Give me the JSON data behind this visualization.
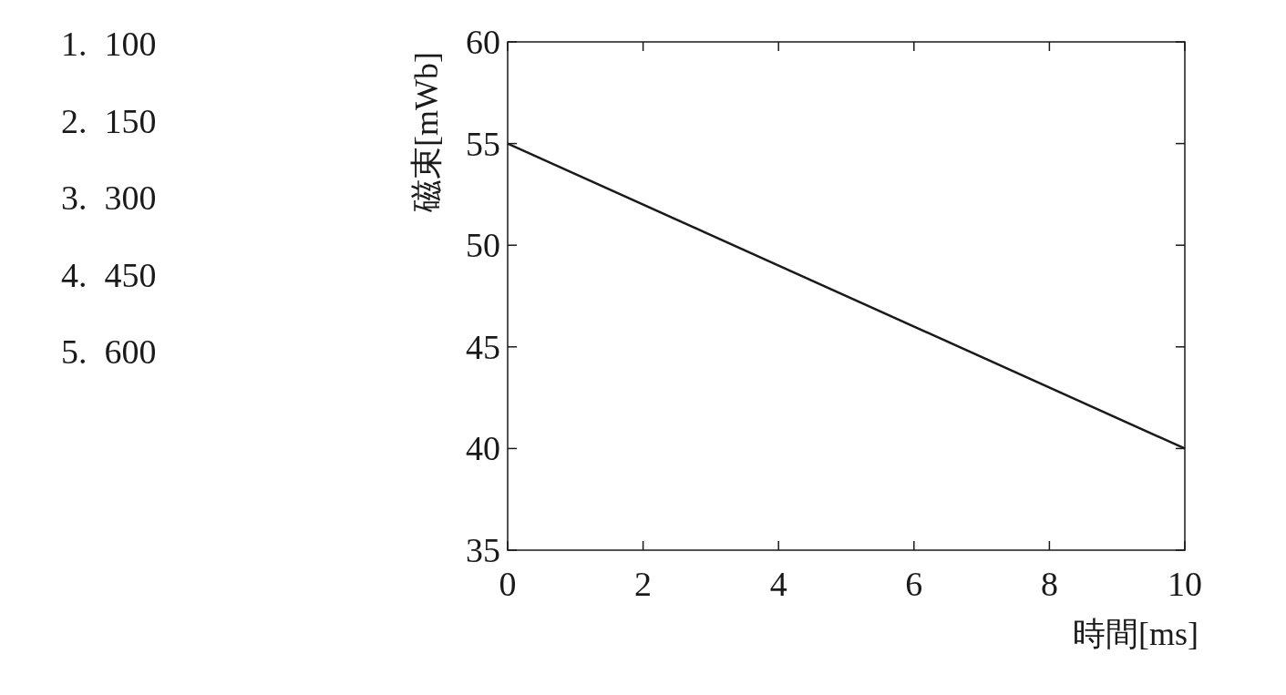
{
  "chart_data": {
    "type": "line",
    "xlabel": "時間[ms]",
    "ylabel": "磁束[mWb]",
    "x": [
      0,
      10
    ],
    "series": [
      {
        "color": "#1a1a1a",
        "values": [
          55,
          40
        ]
      }
    ],
    "line_style": "solid",
    "xlim": [
      0,
      10
    ],
    "xticks": [
      0,
      2,
      4,
      6,
      8,
      10
    ],
    "ylim": [
      35,
      60
    ],
    "yticks": [
      35,
      40,
      45,
      50,
      55,
      60
    ],
    "annotations": [
      "1.  100",
      "2.  150",
      "3.  300",
      "4.  450",
      "5.  600"
    ]
  }
}
